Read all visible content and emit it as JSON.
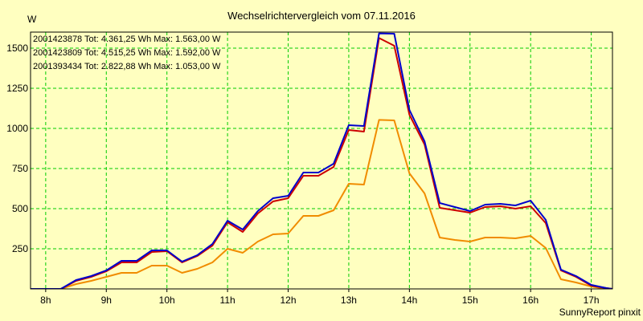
{
  "chart_data": {
    "type": "line",
    "title": "Wechselrichtervergleich vom 07.11.2016",
    "ylabel": "W",
    "xlabel": "",
    "footer": "SunnyReport pinxit",
    "xlim": [
      7.75,
      17.35
    ],
    "ylim": [
      0,
      1600
    ],
    "grid": true,
    "legend_position": "top-left",
    "x_ticks": [
      {
        "value": 8,
        "label": "8h"
      },
      {
        "value": 9,
        "label": "9h"
      },
      {
        "value": 10,
        "label": "10h"
      },
      {
        "value": 11,
        "label": "11h"
      },
      {
        "value": 12,
        "label": "12h"
      },
      {
        "value": 13,
        "label": "13h"
      },
      {
        "value": 14,
        "label": "14h"
      },
      {
        "value": 15,
        "label": "15h"
      },
      {
        "value": 16,
        "label": "16h"
      },
      {
        "value": 17,
        "label": "17h"
      }
    ],
    "y_ticks": [
      {
        "value": 250,
        "label": "250"
      },
      {
        "value": 500,
        "label": "500"
      },
      {
        "value": 750,
        "label": "750"
      },
      {
        "value": 1000,
        "label": "1000"
      },
      {
        "value": 1250,
        "label": "1250"
      },
      {
        "value": 1500,
        "label": "1500"
      }
    ],
    "x": [
      7.75,
      8.0,
      8.25,
      8.5,
      8.75,
      9.0,
      9.25,
      9.5,
      9.75,
      10.0,
      10.25,
      10.5,
      10.75,
      11.0,
      11.25,
      11.5,
      11.75,
      12.0,
      12.25,
      12.5,
      12.75,
      13.0,
      13.25,
      13.5,
      13.75,
      14.0,
      14.25,
      14.5,
      14.75,
      15.0,
      15.25,
      15.5,
      15.75,
      16.0,
      16.25,
      16.5,
      16.75,
      17.0,
      17.25,
      17.35
    ],
    "series": [
      {
        "name": "2001423878",
        "label": "2001423878 Tot: 4.361,25 Wh Max: 1.563,00 W",
        "color": "#cc0000",
        "values": [
          0,
          0,
          0,
          50,
          75,
          110,
          165,
          165,
          230,
          235,
          165,
          205,
          270,
          415,
          355,
          470,
          545,
          565,
          705,
          705,
          760,
          990,
          980,
          1563,
          1515,
          1085,
          900,
          505,
          490,
          475,
          510,
          515,
          500,
          515,
          410,
          115,
          75,
          20,
          5,
          0
        ]
      },
      {
        "name": "2001423809",
        "label": "2001423809 Tot: 4.515,25 Wh Max: 1.592,00 W",
        "color": "#0000cc",
        "values": [
          0,
          0,
          0,
          55,
          80,
          115,
          175,
          175,
          240,
          240,
          170,
          210,
          280,
          425,
          370,
          485,
          565,
          580,
          725,
          725,
          780,
          1020,
          1015,
          1592,
          1590,
          1115,
          920,
          535,
          510,
          485,
          525,
          530,
          520,
          550,
          430,
          120,
          80,
          25,
          5,
          0
        ]
      },
      {
        "name": "2001393434",
        "label": "2001393434 Tot: 2.822,88 Wh Max: 1.053,00 W",
        "color": "#f08c00",
        "values": [
          0,
          0,
          0,
          30,
          50,
          75,
          100,
          100,
          145,
          145,
          100,
          125,
          165,
          250,
          225,
          295,
          340,
          345,
          455,
          455,
          490,
          655,
          650,
          1053,
          1050,
          720,
          595,
          320,
          305,
          295,
          320,
          320,
          315,
          330,
          255,
          60,
          40,
          15,
          0,
          0
        ]
      }
    ]
  }
}
